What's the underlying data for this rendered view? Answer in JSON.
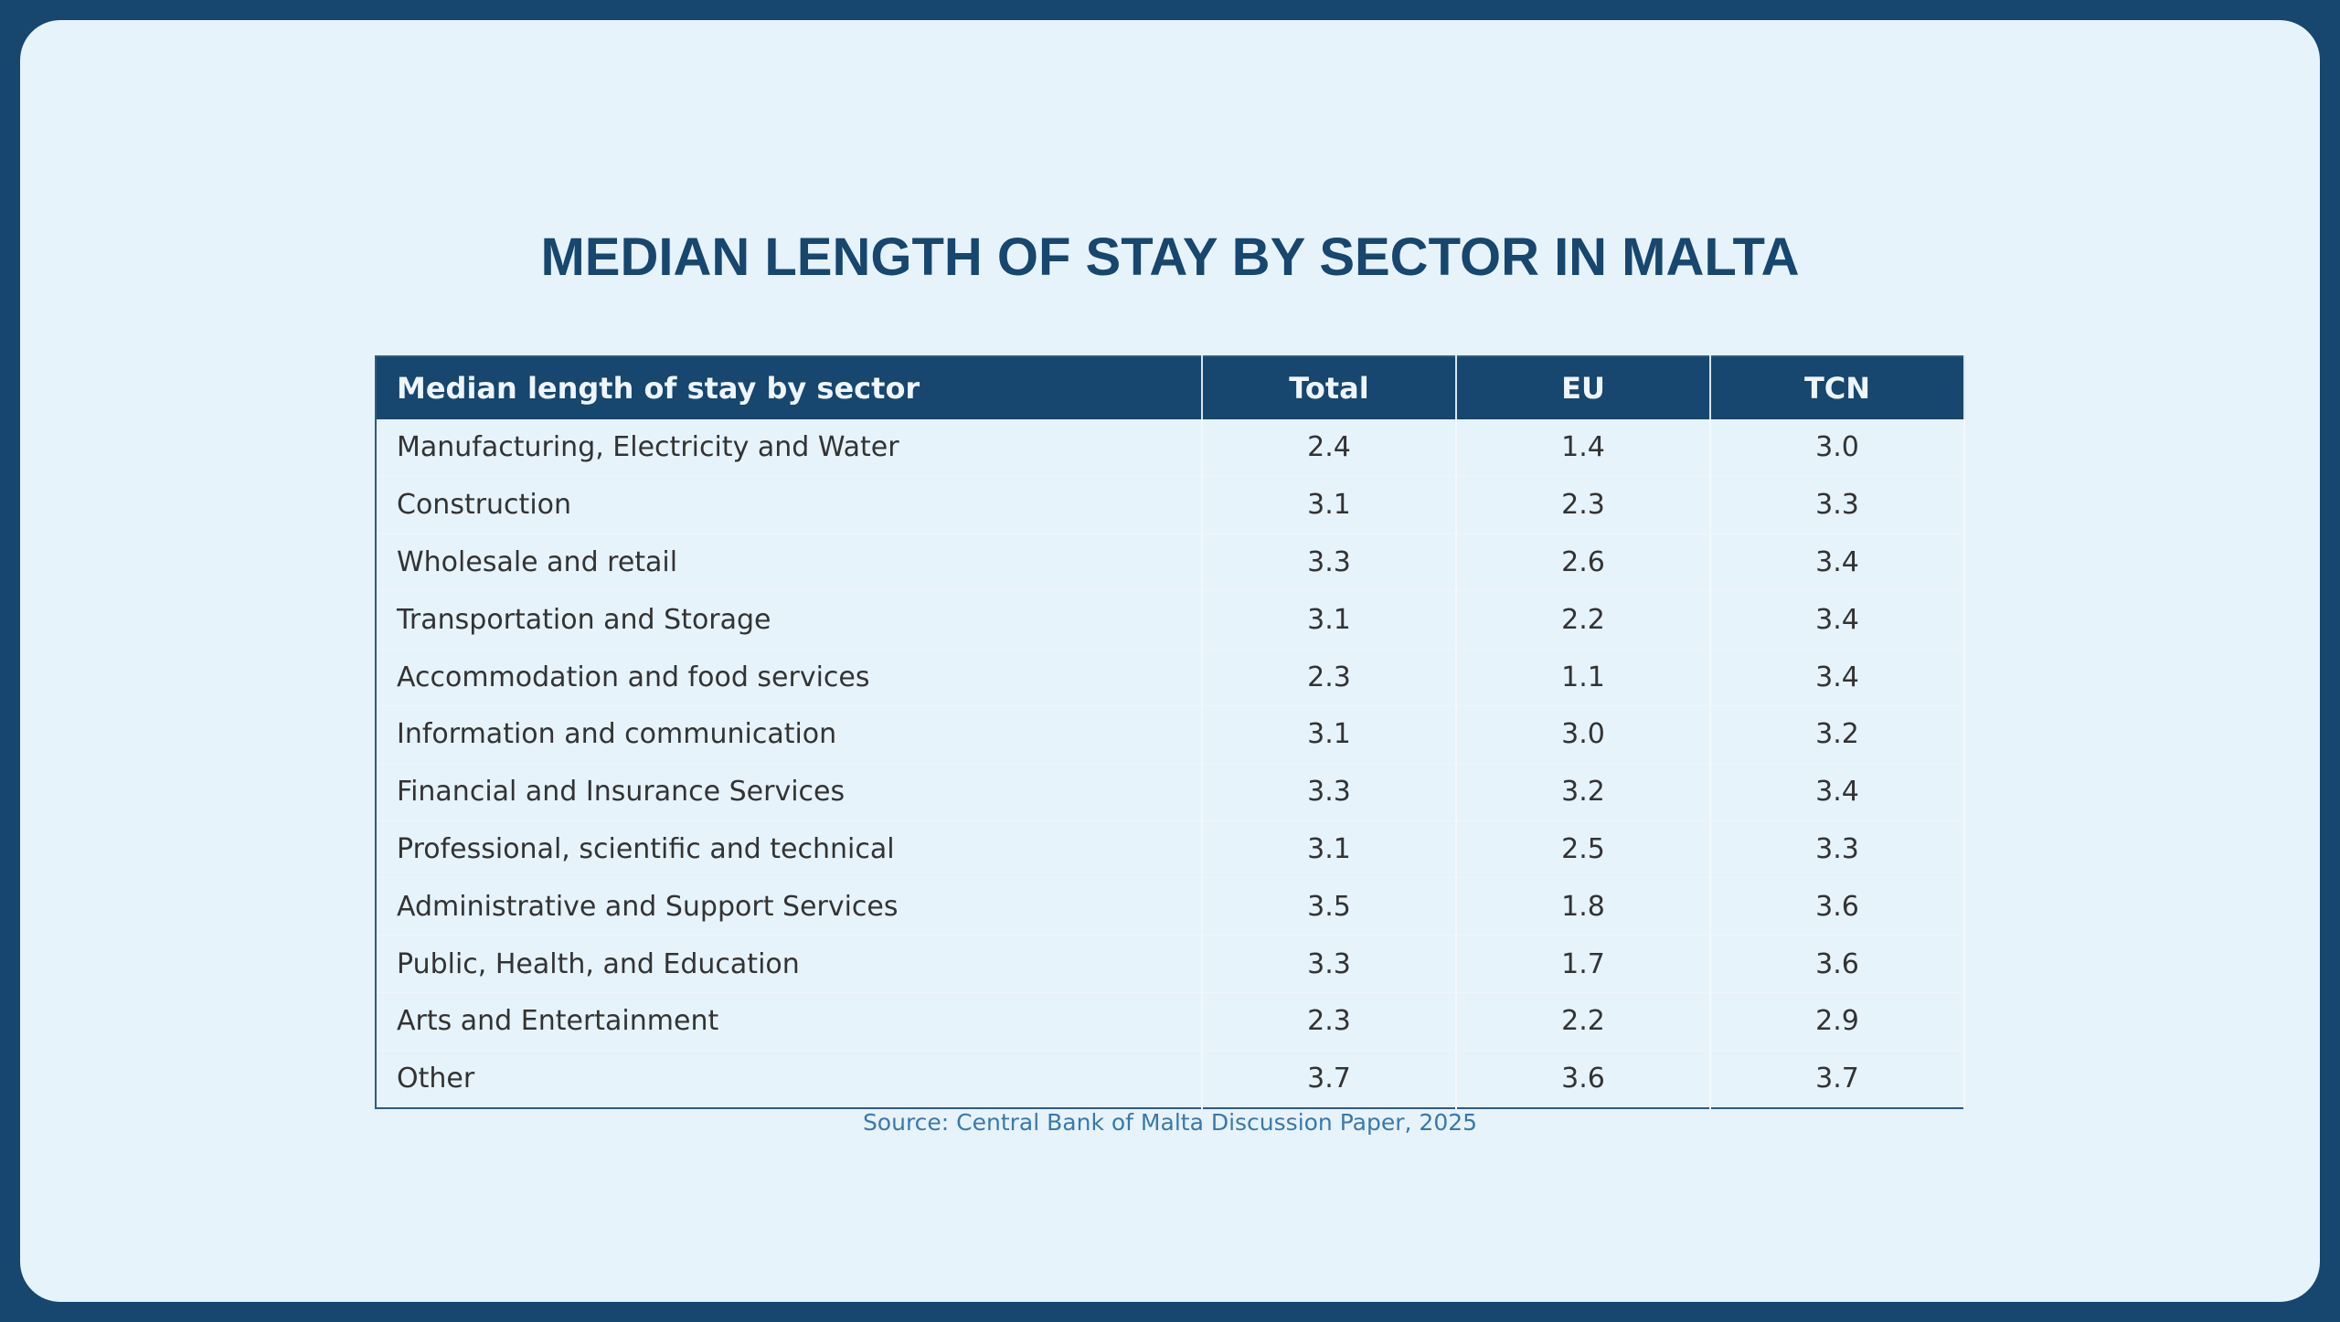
{
  "header": {
    "title": "MEDIAN LENGTH OF STAY BY SECTOR IN MALTA"
  },
  "table": {
    "columns": [
      "Median length of stay by sector",
      "Total",
      "EU",
      "TCN"
    ],
    "rows": [
      [
        "Manufacturing, Electricity and Water",
        "2.4",
        "1.4",
        "3.0"
      ],
      [
        "Construction",
        "3.1",
        "2.3",
        "3.3"
      ],
      [
        "Wholesale and retail",
        "3.3",
        "2.6",
        "3.4"
      ],
      [
        "Transportation and Storage",
        "3.1",
        "2.2",
        "3.4"
      ],
      [
        "Accommodation and food services",
        "2.3",
        "1.1",
        "3.4"
      ],
      [
        "Information and communication",
        "3.1",
        "3.0",
        "3.2"
      ],
      [
        "Financial and Insurance Services",
        "3.3",
        "3.2",
        "3.4"
      ],
      [
        "Professional, scientific and technical",
        "3.1",
        "2.5",
        "3.3"
      ],
      [
        "Administrative and Support Services",
        "3.5",
        "1.8",
        "3.6"
      ],
      [
        "Public, Health, and Education",
        "3.3",
        "1.7",
        "3.6"
      ],
      [
        "Arts and Entertainment",
        "2.3",
        "2.2",
        "2.9"
      ],
      [
        "Other",
        "3.7",
        "3.6",
        "3.7"
      ]
    ]
  },
  "footer": {
    "source": "Source: Central Bank of Malta Discussion Paper, 2025"
  }
}
